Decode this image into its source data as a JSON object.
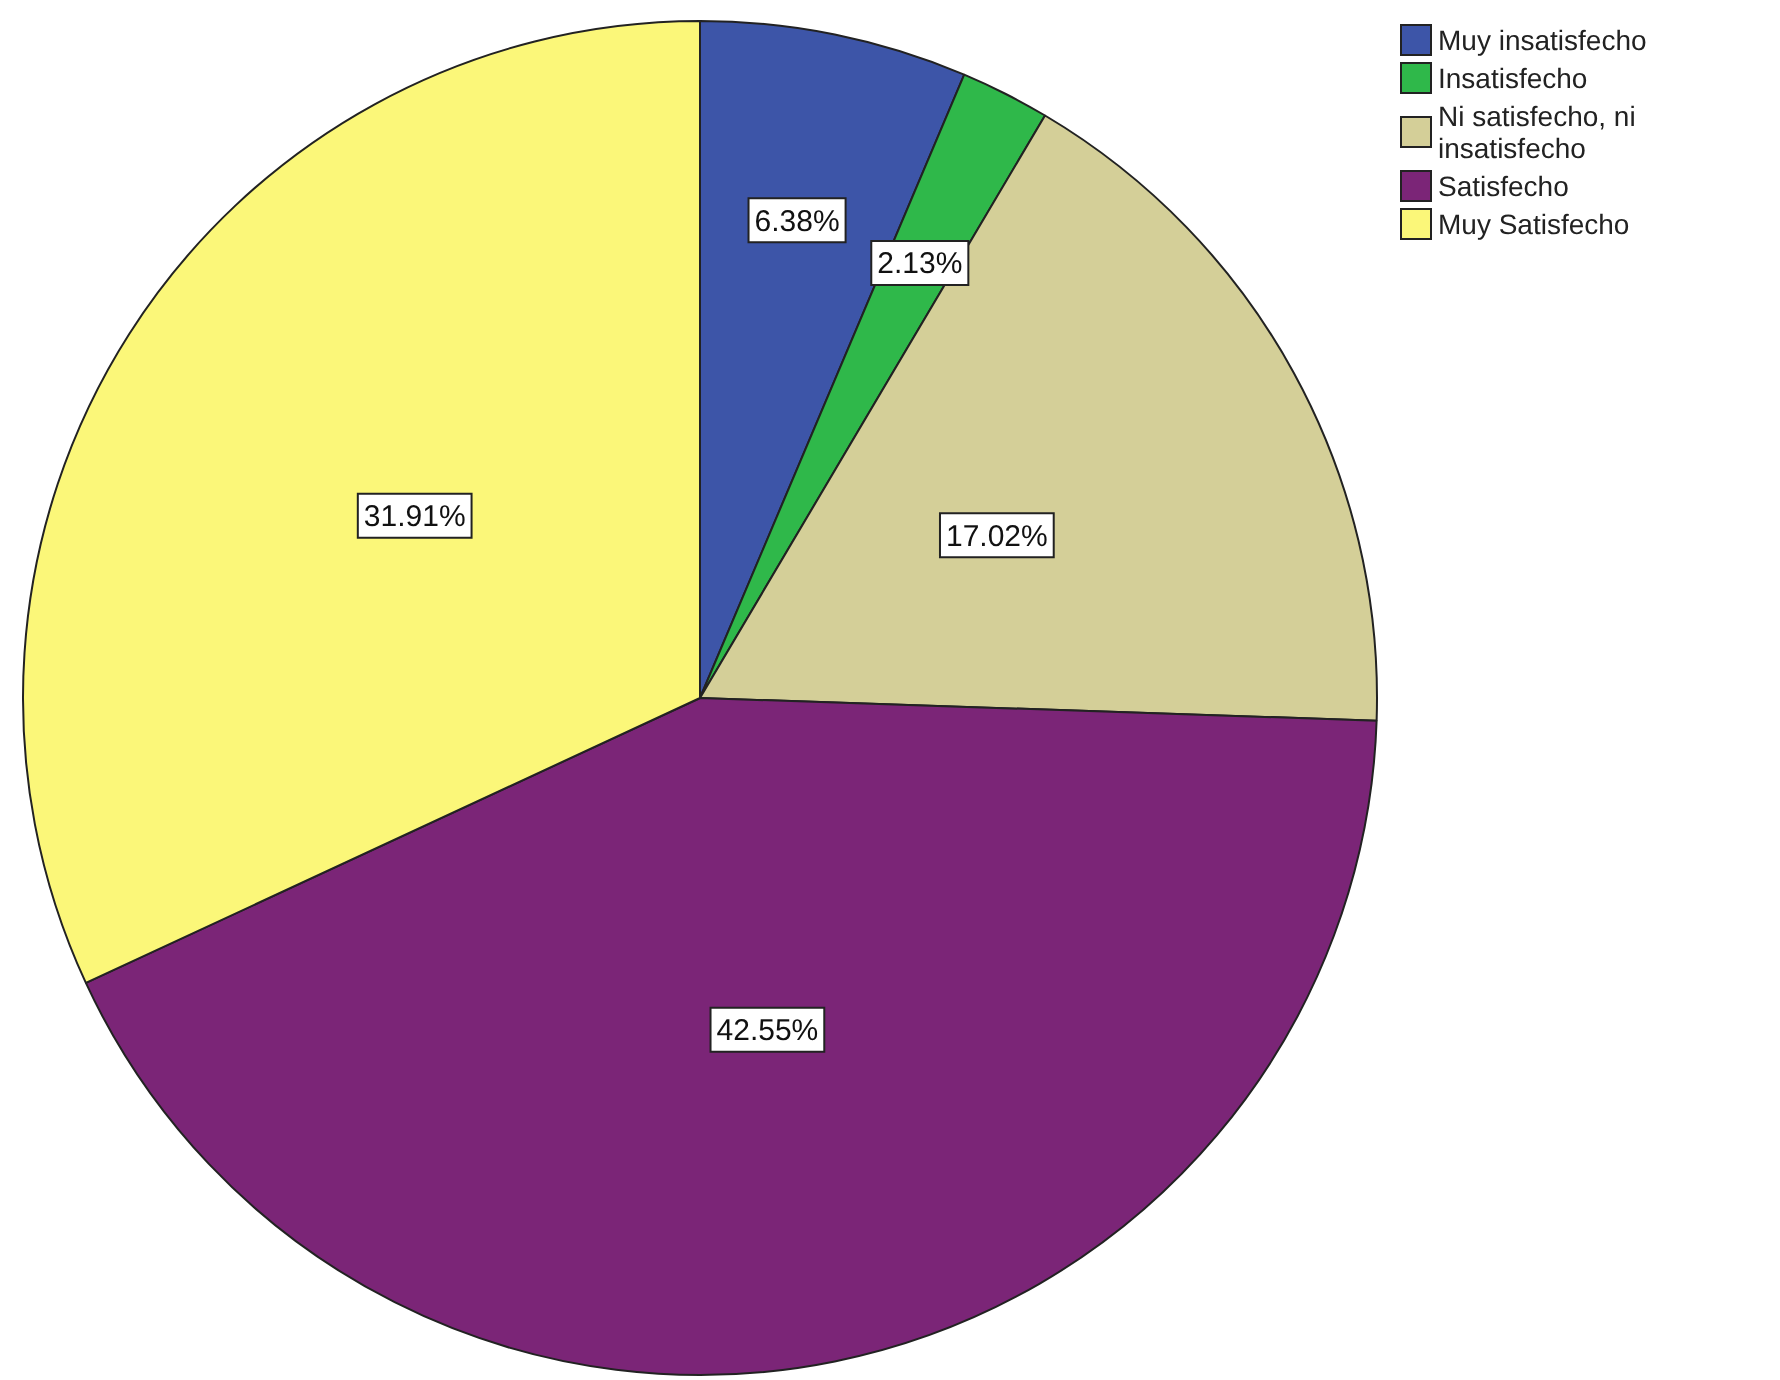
{
  "chart_data": {
    "type": "pie",
    "categories": [
      "Muy insatisfecho",
      "Insatisfecho",
      "Ni satisfecho, ni insatisfecho",
      "Satisfecho",
      "Muy Satisfecho"
    ],
    "values": [
      6.38,
      2.13,
      17.02,
      42.55,
      31.91
    ],
    "value_labels": [
      "6.38%",
      "2.13%",
      "17.02%",
      "42.55%",
      "31.91%"
    ],
    "colors": [
      "#3d55a8",
      "#2fb84a",
      "#d4cf98",
      "#7b2577",
      "#fbf779"
    ],
    "legend": "top right"
  }
}
